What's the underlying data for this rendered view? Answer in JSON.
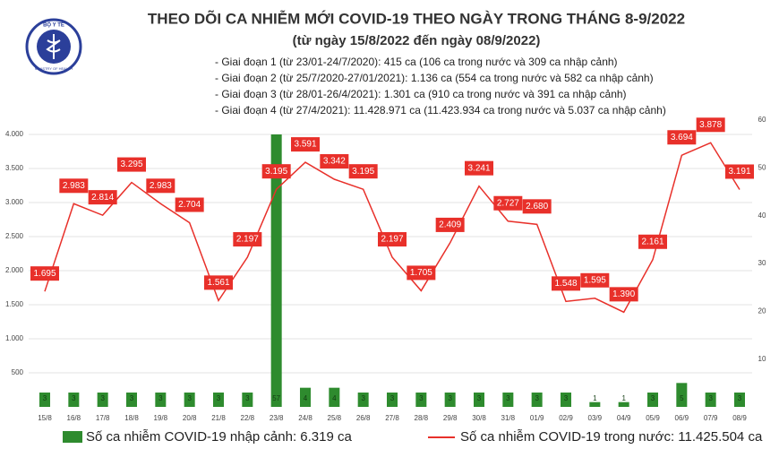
{
  "logo": {
    "name": "BỘ Y TẾ",
    "caption": "MINISTRY OF HEALTH"
  },
  "chart_data": {
    "type": "bar-line",
    "title": "THEO DÕI CA NHIỄM MỚI COVID-19 THEO NGÀY TRONG THÁNG 8-9/2022",
    "subtitle": "(từ ngày 15/8/2022 đến ngày 08/9/2022)",
    "annotations": [
      "- Giai đoạn 1 (từ 23/01-24/7/2020): 415 ca (106 ca trong nước và 309 ca nhập cảnh)",
      "- Giai đoạn 2 (từ 25/7/2020-27/01/2021): 1.136 ca (554 ca trong nước và 582 ca nhập cảnh)",
      "- Giai đoạn 3 (từ 28/01-26/4/2021): 1.301 ca (910 ca trong nước và 391 ca nhập cảnh)",
      "- Giai đoạn 4 (từ 27/4/2021): 11.428.971 ca (11.423.934 ca trong nước và 5.037 ca nhập cảnh)"
    ],
    "categories": [
      "15/8",
      "16/8",
      "17/8",
      "18/8",
      "19/8",
      "20/8",
      "21/8",
      "22/8",
      "23/8",
      "24/8",
      "25/8",
      "26/8",
      "27/8",
      "28/8",
      "29/8",
      "30/8",
      "31/8",
      "01/9",
      "02/9",
      "03/9",
      "04/9",
      "05/9",
      "06/9",
      "07/9",
      "08/9"
    ],
    "series": [
      {
        "name": "Số ca nhiễm COVID-19 nhập cảnh: 6.319 ca",
        "type": "bar",
        "axis": "y2",
        "color": "#2e8b2e",
        "values": [
          3,
          3,
          3,
          3,
          3,
          3,
          3,
          3,
          57,
          4,
          4,
          3,
          3,
          3,
          3,
          3,
          3,
          3,
          3,
          1,
          1,
          3,
          5,
          3,
          3
        ]
      },
      {
        "name": "Số ca nhiễm COVID-19 trong nước: 11.425.504 ca",
        "type": "line",
        "axis": "y",
        "color": "#e8302a",
        "values": [
          1695,
          2983,
          2814,
          3295,
          2983,
          2704,
          1561,
          2197,
          3195,
          3591,
          3342,
          3195,
          2197,
          1705,
          2409,
          3241,
          2727,
          2680,
          1548,
          1595,
          1390,
          2161,
          3694,
          3878,
          3191
        ],
        "value_labels": [
          "1.695",
          "2.983",
          "2.814",
          "3.295",
          "2.983",
          "2.704",
          "1.561",
          "2.197",
          "3.195",
          "3.591",
          "3.342",
          "3.195",
          "2.197",
          "1.705",
          "2.409",
          "3.241",
          "2.727",
          "2.680",
          "1.548",
          "1.595",
          "1.390",
          "2.161",
          "3.694",
          "3.878",
          "3.191"
        ]
      }
    ],
    "ylim": [
      0,
      4000
    ],
    "yticks": [
      {
        "value": 500,
        "label": "500"
      },
      {
        "value": 1000,
        "label": "1.000"
      },
      {
        "value": 1500,
        "label": "1.500"
      },
      {
        "value": 2000,
        "label": "2.000"
      },
      {
        "value": 2500,
        "label": "2.500"
      },
      {
        "value": 3000,
        "label": "3.000"
      },
      {
        "value": 3500,
        "label": "3.500"
      },
      {
        "value": 4000,
        "label": "4.000"
      }
    ],
    "y2lim": [
      0,
      60
    ],
    "y2ticks": [
      10,
      20,
      30,
      40,
      50,
      60
    ],
    "grid": true
  }
}
